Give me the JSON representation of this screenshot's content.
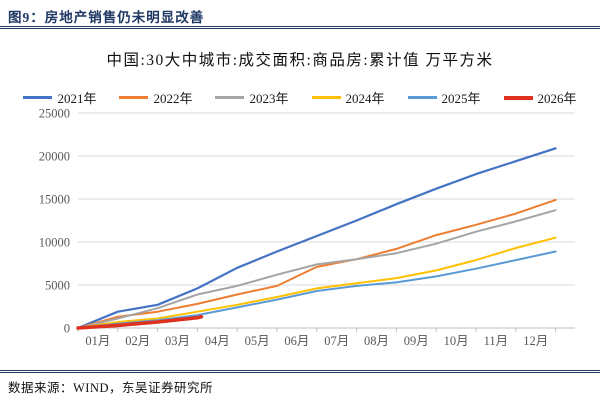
{
  "figure": {
    "title": "图9：房地产销售仍未明显改善"
  },
  "source": {
    "text": "数据来源：WIND，东吴证券研究所"
  },
  "colors": {
    "accent_navy": "#1F3864",
    "gridline": "#D9D9D9",
    "axis": "#BFBFBF",
    "tick_label": "#595959"
  },
  "chart_data": {
    "type": "line",
    "title": "中国:30大中城市:成交面积:商品房:累计值 万平方米",
    "xlabel": "",
    "ylabel": "",
    "legend_position": "top",
    "grid": "horizontal",
    "x_axis": {
      "tick_labels": [
        "01月",
        "02月",
        "03月",
        "04月",
        "05月",
        "06月",
        "07月",
        "08月",
        "09月",
        "10月",
        "11月",
        "12月"
      ],
      "months_span": 12
    },
    "y_axis": {
      "min": 0,
      "max": 25000,
      "step": 5000,
      "tick_labels": [
        "0",
        "5000",
        "10000",
        "15000",
        "20000",
        "25000"
      ]
    },
    "series": [
      {
        "name": "2021年",
        "color": "#4472C4",
        "width": 2.2,
        "x": [
          0,
          1,
          2,
          3,
          4,
          5,
          6,
          7,
          8,
          9,
          10,
          11,
          12
        ],
        "values": [
          0,
          1900,
          2700,
          4600,
          7000,
          8900,
          10700,
          12500,
          14400,
          16200,
          17900,
          19400,
          20900
        ]
      },
      {
        "name": "2022年",
        "color": "#ED7D31",
        "width": 2,
        "x": [
          0,
          1,
          2,
          3,
          4,
          5,
          6,
          7,
          8,
          9,
          10,
          11,
          12
        ],
        "values": [
          0,
          1300,
          1900,
          2800,
          3900,
          4900,
          7100,
          8000,
          9200,
          10800,
          12000,
          13300,
          14900
        ]
      },
      {
        "name": "2023年",
        "color": "#A5A5A5",
        "width": 2,
        "x": [
          0,
          1,
          2,
          3,
          4,
          5,
          6,
          7,
          8,
          9,
          10,
          11,
          12
        ],
        "values": [
          0,
          1100,
          2300,
          3900,
          4900,
          6200,
          7400,
          8000,
          8700,
          9800,
          11200,
          12400,
          13700
        ]
      },
      {
        "name": "2024年",
        "color": "#FFC000",
        "width": 2,
        "x": [
          0,
          1,
          2,
          3,
          4,
          5,
          6,
          7,
          8,
          9,
          10,
          11,
          12
        ],
        "values": [
          0,
          700,
          1100,
          1900,
          2700,
          3600,
          4600,
          5200,
          5800,
          6700,
          7900,
          9300,
          10500
        ]
      },
      {
        "name": "2025年",
        "color": "#5B9BD5",
        "width": 2,
        "x": [
          0,
          1,
          2,
          3,
          4,
          5,
          6,
          7,
          8,
          9,
          10,
          11,
          12
        ],
        "values": [
          0,
          500,
          900,
          1500,
          2400,
          3300,
          4300,
          4900,
          5300,
          6000,
          6900,
          7900,
          8900
        ]
      },
      {
        "name": "2026年",
        "color": "#E0301E",
        "width": 3.6,
        "x": [
          0,
          1,
          2,
          3,
          3.1
        ],
        "values": [
          0,
          300,
          700,
          1200,
          1300
        ]
      }
    ]
  }
}
